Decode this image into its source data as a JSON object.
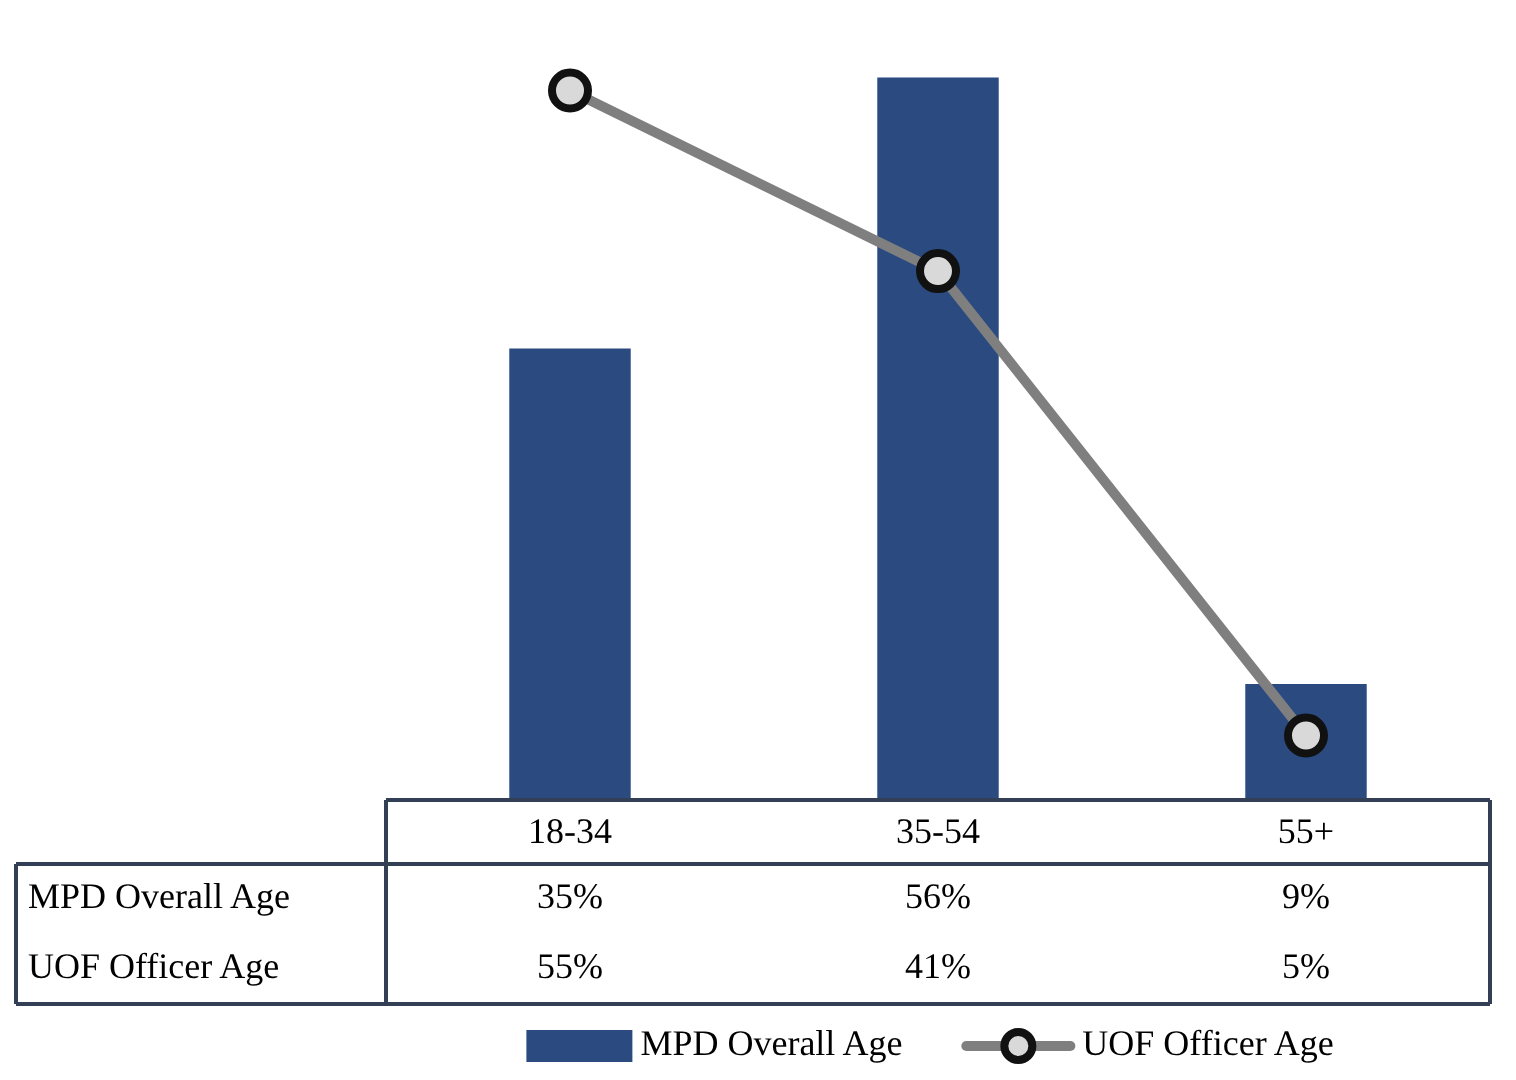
{
  "chart_data": {
    "type": "bar",
    "categories": [
      "18-34",
      "35-54",
      "55+"
    ],
    "series": [
      {
        "name": "MPD Overall Age",
        "color": "#2a4a80",
        "values": [
          35,
          56,
          9
        ],
        "value_labels": [
          "35%",
          "56%",
          "9%"
        ]
      },
      {
        "name": "UOF Officer Age",
        "type": "line",
        "color": "#7f7f7f",
        "marker": "circle",
        "values": [
          55,
          41,
          5
        ],
        "value_labels": [
          "55%",
          "41%",
          "5%"
        ]
      }
    ],
    "legend": "bottom",
    "tick_labels": "x"
  }
}
